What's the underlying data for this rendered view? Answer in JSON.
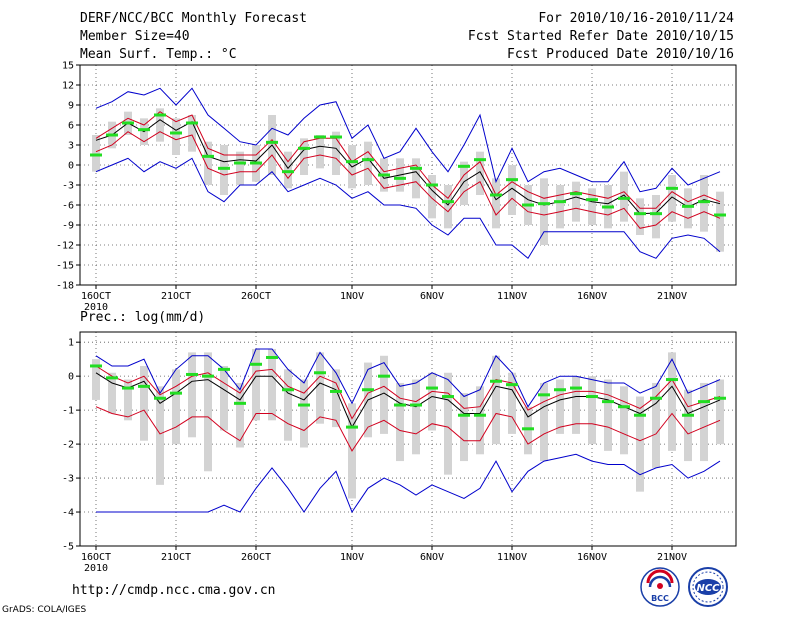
{
  "header": {
    "title": "DERF/NCC/BCC Monthly Forecast",
    "member_size": "Member Size=40",
    "variable": "Mean Surf. Temp.: °C",
    "period": "For 2010/10/16-2010/11/24",
    "fcst_started": "Fcst Started Refer Date 2010/10/15",
    "fcst_produced": "Fcst Produced Date 2010/10/16"
  },
  "footer": {
    "url": "http://cmdp.ncc.cma.gov.cn",
    "grads": "GrADS: COLA/IGES",
    "logo_bcc": "BCC",
    "logo_ncc": "NCC"
  },
  "colors": {
    "box": "#d3d3d3",
    "ensemble_mean": "#000000",
    "spread": "#d2001e",
    "envelope": "#0000cc",
    "observed": "#22dd22"
  },
  "chart_data": [
    {
      "type": "line",
      "title": "Mean Surf. Temp.: °C",
      "xlabel": "",
      "ylabel": "°C",
      "ylim": [
        -18,
        15
      ],
      "yticks": [
        "15",
        "12",
        "9",
        "6",
        "3",
        "0",
        "-3",
        "-6",
        "-9",
        "-12",
        "-15",
        "-18"
      ],
      "ytick_values": [
        15,
        12,
        9,
        6,
        3,
        0,
        -3,
        -6,
        -9,
        -12,
        -15,
        -18
      ],
      "xtick_labels": [
        "16OCT",
        "21OCT",
        "26OCT",
        "1NOV",
        "6NOV",
        "11NOV",
        "16NOV",
        "21NOV"
      ],
      "xtick_year": "2010",
      "xtick_days": [
        0,
        5,
        10,
        16,
        21,
        26,
        31,
        36
      ],
      "days": 40,
      "series": [
        {
          "name": "ensemble mean",
          "values": [
            3.7,
            4.5,
            6.3,
            5,
            6.8,
            5.2,
            6.5,
            1.3,
            0.5,
            0.8,
            0.6,
            3,
            -0.5,
            2.3,
            2.8,
            2.5,
            -0.3,
            1,
            -2,
            -1.5,
            -1,
            -3.8,
            -6,
            -2.5,
            -1,
            -5.2,
            -3.5,
            -5.2,
            -6,
            -5.5,
            -4.8,
            -5.5,
            -5.8,
            -4.5,
            -7.3,
            -7.2,
            -4.8,
            -6.3,
            -5.2,
            -5.8
          ]
        },
        {
          "name": "upper spread",
          "values": [
            4,
            5.5,
            7,
            6,
            8,
            6.5,
            7.5,
            2.5,
            1.5,
            1.5,
            1.5,
            3.8,
            0.5,
            3.5,
            4,
            4,
            0.5,
            2,
            -1,
            -0.5,
            0,
            -3,
            -5,
            -1.5,
            0.5,
            -4.5,
            -2.5,
            -4,
            -5,
            -4.5,
            -4,
            -4.5,
            -5,
            -4,
            -6.5,
            -6.5,
            -4,
            -5.5,
            -4.5,
            -5.5
          ]
        },
        {
          "name": "lower spread",
          "values": [
            2,
            3,
            5,
            3.5,
            5,
            3.8,
            4.5,
            -0.5,
            -1.5,
            -1,
            -1,
            1.5,
            -2,
            1,
            1.5,
            1,
            -1.5,
            -0.5,
            -3.5,
            -3,
            -2.5,
            -5,
            -7,
            -4,
            -2.5,
            -7.5,
            -5,
            -7,
            -7.5,
            -7,
            -6.5,
            -7,
            -7.5,
            -6.5,
            -9.5,
            -9,
            -7,
            -8,
            -7,
            -8
          ]
        },
        {
          "name": "max envelope",
          "values": [
            8.5,
            9.5,
            11,
            10.5,
            11.5,
            9,
            11.5,
            7.5,
            5.5,
            3.5,
            3,
            5.5,
            4.5,
            7,
            9,
            9.5,
            4,
            6,
            1,
            2,
            5.5,
            2,
            -1,
            3,
            7.5,
            -2.5,
            2.5,
            -2.5,
            -1,
            -0.5,
            -1.5,
            -2.5,
            -2.5,
            0.5,
            -4,
            -3.5,
            -0.5,
            -3,
            -2,
            -1
          ]
        },
        {
          "name": "min envelope",
          "values": [
            -1,
            0,
            1,
            -1,
            0.5,
            -0.5,
            1,
            -4,
            -5.5,
            -3,
            -3,
            -1,
            -4,
            -3,
            -2,
            -3,
            -5,
            -4,
            -6,
            -6,
            -6.5,
            -9,
            -10.5,
            -8,
            -8,
            -12,
            -12,
            -14,
            -10,
            -10,
            -10,
            -10,
            -10,
            -10,
            -13,
            -14,
            -11,
            -10.5,
            -11,
            -13
          ]
        },
        {
          "name": "observed",
          "values": [
            1.5,
            4.5,
            6.3,
            5.3,
            7.5,
            4.8,
            6.3,
            1.3,
            -0.5,
            0.3,
            0.3,
            3.4,
            -1,
            2.5,
            4.2,
            4.2,
            0.5,
            0.8,
            -1.5,
            -2,
            -0.5,
            -3,
            -5.5,
            -0.2,
            0.8,
            -4.5,
            -2.2,
            -6,
            -5.8,
            -5.5,
            -4.3,
            -5.2,
            -6.3,
            -5,
            -7.3,
            -7.3,
            -3.5,
            -6.2,
            -5.5,
            -7.5
          ]
        },
        {
          "name": "box top",
          "values": [
            4.5,
            6.5,
            8,
            7,
            8.5,
            7,
            7.5,
            3.5,
            3,
            2,
            3,
            7.5,
            2,
            4,
            4.5,
            5,
            3,
            3.5,
            1,
            1,
            1,
            -1.5,
            -3,
            0.5,
            2,
            -2,
            0,
            -3,
            -2,
            -3,
            -2.5,
            -3.5,
            -3,
            -1,
            -5,
            -4.5,
            -1.5,
            -3.5,
            -1.5,
            -4
          ]
        },
        {
          "name": "box bottom",
          "values": [
            -1,
            2.5,
            4.5,
            3,
            3.5,
            1.5,
            2,
            -3,
            -4.5,
            -3,
            -2.5,
            -1.5,
            -3.5,
            -1.5,
            -0.5,
            -1.5,
            -3.5,
            -3,
            -4,
            -4,
            -5,
            -8,
            -9.5,
            -6,
            -4.5,
            -9.5,
            -7.5,
            -9,
            -12,
            -9.5,
            -8.5,
            -9,
            -9.5,
            -8.5,
            -10.5,
            -11,
            -8.5,
            -9.5,
            -10,
            -13
          ]
        }
      ]
    },
    {
      "type": "line",
      "title": "Prec.: log(mm/d)",
      "xlabel": "",
      "ylabel": "log(mm/d)",
      "ylim": [
        -5,
        1.3
      ],
      "yticks": [
        "1",
        "0",
        "-1",
        "-2",
        "-3",
        "-4",
        "-5"
      ],
      "ytick_values": [
        1,
        0,
        -1,
        -2,
        -3,
        -4,
        -5
      ],
      "xtick_labels": [
        "16OCT",
        "21OCT",
        "26OCT",
        "1NOV",
        "6NOV",
        "11NOV",
        "16NOV",
        "21NOV"
      ],
      "xtick_year": "2010",
      "xtick_days": [
        0,
        5,
        10,
        16,
        21,
        26,
        31,
        36
      ],
      "days": 40,
      "series": [
        {
          "name": "ensemble mean",
          "values": [
            0.1,
            -0.2,
            -0.35,
            -0.15,
            -0.8,
            -0.5,
            -0.15,
            -0.1,
            -0.4,
            -0.7,
            0,
            0,
            -0.5,
            -0.7,
            -0.2,
            -0.4,
            -1.5,
            -0.7,
            -0.5,
            -0.8,
            -0.9,
            -0.6,
            -0.7,
            -1.1,
            -1.1,
            -0.3,
            -0.4,
            -1.2,
            -0.9,
            -0.7,
            -0.6,
            -0.6,
            -0.7,
            -0.9,
            -1.1,
            -0.8,
            -0.3,
            -1.1,
            -0.9,
            -0.7
          ]
        },
        {
          "name": "upper spread",
          "values": [
            0.3,
            0,
            -0.2,
            0,
            -0.55,
            -0.3,
            0,
            0.1,
            -0.2,
            -0.5,
            0.15,
            0.2,
            -0.3,
            -0.5,
            0,
            -0.2,
            -1.25,
            -0.5,
            -0.3,
            -0.65,
            -0.75,
            -0.45,
            -0.5,
            -0.95,
            -0.9,
            -0.1,
            -0.2,
            -1,
            -0.75,
            -0.55,
            -0.45,
            -0.45,
            -0.55,
            -0.75,
            -0.95,
            -0.6,
            -0.1,
            -0.9,
            -0.75,
            -0.6
          ]
        },
        {
          "name": "lower spread",
          "values": [
            -0.9,
            -1.1,
            -1.2,
            -1,
            -1.7,
            -1.5,
            -1.2,
            -1.2,
            -1.6,
            -1.9,
            -1.1,
            -1.1,
            -1.4,
            -1.6,
            -1.2,
            -1.3,
            -2.2,
            -1.5,
            -1.3,
            -1.6,
            -1.7,
            -1.4,
            -1.5,
            -1.9,
            -1.9,
            -1.1,
            -1.2,
            -2,
            -1.7,
            -1.5,
            -1.4,
            -1.4,
            -1.5,
            -1.7,
            -1.9,
            -1.7,
            -1.1,
            -1.7,
            -1.5,
            -1.3
          ]
        },
        {
          "name": "max envelope",
          "values": [
            0.6,
            0.3,
            0.3,
            0.5,
            -0.5,
            0.2,
            0.6,
            0.6,
            0.2,
            -0.4,
            0.8,
            0.8,
            0.2,
            -0.2,
            0.7,
            0.1,
            -0.8,
            0.2,
            0.4,
            -0.3,
            -0.2,
            0.1,
            -0.1,
            -0.6,
            -0.4,
            0.6,
            0.1,
            -0.9,
            -0.2,
            0,
            0,
            -0.1,
            -0.2,
            -0.2,
            -0.5,
            -0.3,
            0.5,
            -0.5,
            -0.3,
            -0.1
          ]
        },
        {
          "name": "min envelope",
          "values": [
            -4,
            -4,
            -4,
            -4,
            -4,
            -4,
            -4,
            -4,
            -3.8,
            -4,
            -3.3,
            -2.7,
            -3.3,
            -4,
            -3.3,
            -2.8,
            -4,
            -3.3,
            -3,
            -3.2,
            -3.5,
            -3.2,
            -3.4,
            -3.6,
            -3.3,
            -2.5,
            -3.4,
            -2.8,
            -2.5,
            -2.4,
            -2.3,
            -2.5,
            -2.6,
            -2.6,
            -2.9,
            -2.7,
            -2.6,
            -3,
            -2.8,
            -2.5
          ]
        },
        {
          "name": "observed",
          "values": [
            0.3,
            -0.05,
            -0.35,
            -0.3,
            -0.65,
            -0.5,
            0.05,
            0,
            0.2,
            -0.8,
            0.35,
            0.55,
            -0.4,
            -0.85,
            0.1,
            -0.45,
            -1.5,
            -0.4,
            0,
            -0.85,
            -0.85,
            -0.35,
            -0.6,
            -1.15,
            -1.15,
            -0.15,
            -0.25,
            -1.55,
            -0.55,
            -0.4,
            -0.35,
            -0.6,
            -0.75,
            -0.9,
            -1.15,
            -0.65,
            -0.1,
            -1.15,
            -0.75,
            -0.65
          ]
        },
        {
          "name": "box top",
          "values": [
            0.5,
            0.1,
            -0.1,
            0.3,
            -0.3,
            0.2,
            0.7,
            0.7,
            0.3,
            -0.2,
            0.8,
            0.8,
            0.2,
            -0.1,
            0.7,
            0.2,
            -0.8,
            0.4,
            0.6,
            -0.2,
            -0.1,
            0.1,
            0.1,
            -0.5,
            -0.3,
            0.6,
            0.1,
            -0.9,
            -0.2,
            -0.1,
            0,
            0,
            -0.1,
            -0.3,
            -0.6,
            -0.2,
            0.7,
            -0.4,
            -0.2,
            -0.1
          ]
        },
        {
          "name": "box bottom",
          "values": [
            -0.7,
            -1.1,
            -1.3,
            -1.9,
            -3.2,
            -2,
            -1.8,
            -2.8,
            -1.6,
            -2.1,
            -1.3,
            -1.3,
            -1.9,
            -2.1,
            -1.4,
            -1.5,
            -3.6,
            -1.8,
            -1.7,
            -2.5,
            -2.3,
            -1.6,
            -2.9,
            -2.5,
            -2.3,
            -2,
            -1.7,
            -2.3,
            -2.5,
            -1.7,
            -1.7,
            -2,
            -2.2,
            -2.3,
            -3.4,
            -2.7,
            -2.2,
            -2.5,
            -2.5,
            -2
          ]
        }
      ]
    }
  ]
}
